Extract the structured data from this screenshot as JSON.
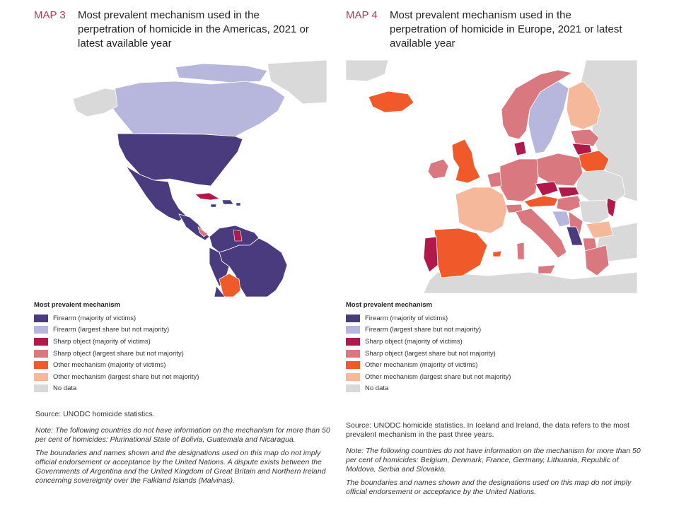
{
  "maps": [
    {
      "number": "MAP 3",
      "title": "Most prevalent mechanism used in the perpetration of homicide in the Americas, 2021 or latest available year",
      "legend_title": "Most prevalent mechanism",
      "legend": [
        {
          "label": "Firearm (majority of victims)",
          "color": "#4a3b7f"
        },
        {
          "label": "Firearm (largest share but not majority)",
          "color": "#b7b6dc"
        },
        {
          "label": "Sharp object (majority of victims)",
          "color": "#b0194a"
        },
        {
          "label": "Sharp object (largest share but not majority)",
          "color": "#d9787e"
        },
        {
          "label": "Other mechanism (majority of victims)",
          "color": "#f0592a"
        },
        {
          "label": "Other mechanism (largest share but not majority)",
          "color": "#f6b89a"
        },
        {
          "label": "No data",
          "color": "#d9d9d9"
        }
      ],
      "source": "Source: UNODC homicide statistics.",
      "note": "Note: The following countries do not have information on the mechanism for more than 50 per cent of homicides: Plurinational State of Bolivia, Guatemala and Nicaragua.",
      "disclaimer": "The boundaries and names shown and the designations used on this map do not imply official endorsement or acceptance by the United Nations. A dispute exists between the Governments of Argentina and the United Kingdom of Great Britain and Northern Ireland concerning sovereignty over the Falkland Islands (Malvinas)."
    },
    {
      "number": "MAP 4",
      "title": "Most prevalent mechanism used in the perpetration of homicide in Europe, 2021 or latest available year",
      "legend_title": "Most prevalent mechanism",
      "legend": [
        {
          "label": "Firearm (majority of victims)",
          "color": "#4a3b7f"
        },
        {
          "label": "Firearm (largest share but not majority)",
          "color": "#b7b6dc"
        },
        {
          "label": "Sharp object (majority of victims)",
          "color": "#b0194a"
        },
        {
          "label": "Sharp object (largest share but not majority)",
          "color": "#d9787e"
        },
        {
          "label": "Other mechanism (majority of victims)",
          "color": "#f0592a"
        },
        {
          "label": "Other mechanism (largest share but not majority)",
          "color": "#f6b89a"
        },
        {
          "label": "No data",
          "color": "#d9d9d9"
        }
      ],
      "source": "Source: UNODC homicide statistics. In Iceland and Ireland, the data refers to the most prevalent mechanism in the past three years.",
      "note": "Note: The following countries do not have information on the mechanism for more than 50 per cent of homicides: Belgium, Denmark, France, Germany, Lithuania, Republic of Moldova, Serbia and Slovakia.",
      "disclaimer": "The boundaries and names shown and the designations used on this map do not imply official endorsement or acceptance by the United Nations."
    }
  ]
}
